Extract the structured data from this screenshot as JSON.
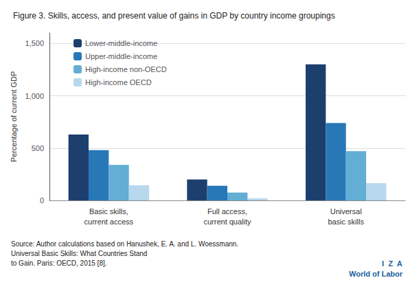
{
  "chart_data": {
    "type": "bar",
    "title": "Figure 3. Skills, access, and present value of gains in GDP by country income groupings",
    "ylabel": "Percentage of current GDP",
    "categories": [
      "Basic skills,\ncurrent access",
      "Full access,\ncurrent quality",
      "Universal\nbasic skills"
    ],
    "series": [
      {
        "name": "Lower-middle-income",
        "color": "#1c3f6e",
        "values": [
          630,
          200,
          1300
        ]
      },
      {
        "name": "Upper-middle-income",
        "color": "#2878b8",
        "values": [
          480,
          140,
          740
        ]
      },
      {
        "name": "High-income non-OECD",
        "color": "#62aed4",
        "values": [
          340,
          75,
          470
        ]
      },
      {
        "name": "High-income OECD",
        "color": "#b8d8ee",
        "values": [
          145,
          20,
          165
        ]
      }
    ],
    "ylim": [
      0,
      1600
    ],
    "yticks": [
      0,
      500,
      {
        "value": 1000,
        "label": "1,000"
      },
      {
        "value": 1500,
        "label": "1,500"
      }
    ],
    "grid": true,
    "legend": "upper left",
    "annotations": [
      "Source: Author calculations based on Hanushek, E. A. and L. Woessmann.",
      "Universal Basic Skills: What Countries Stand",
      "to Gain. Paris: OECD, 2015 [8].",
      "I  Z  A",
      "World of Labor"
    ]
  }
}
